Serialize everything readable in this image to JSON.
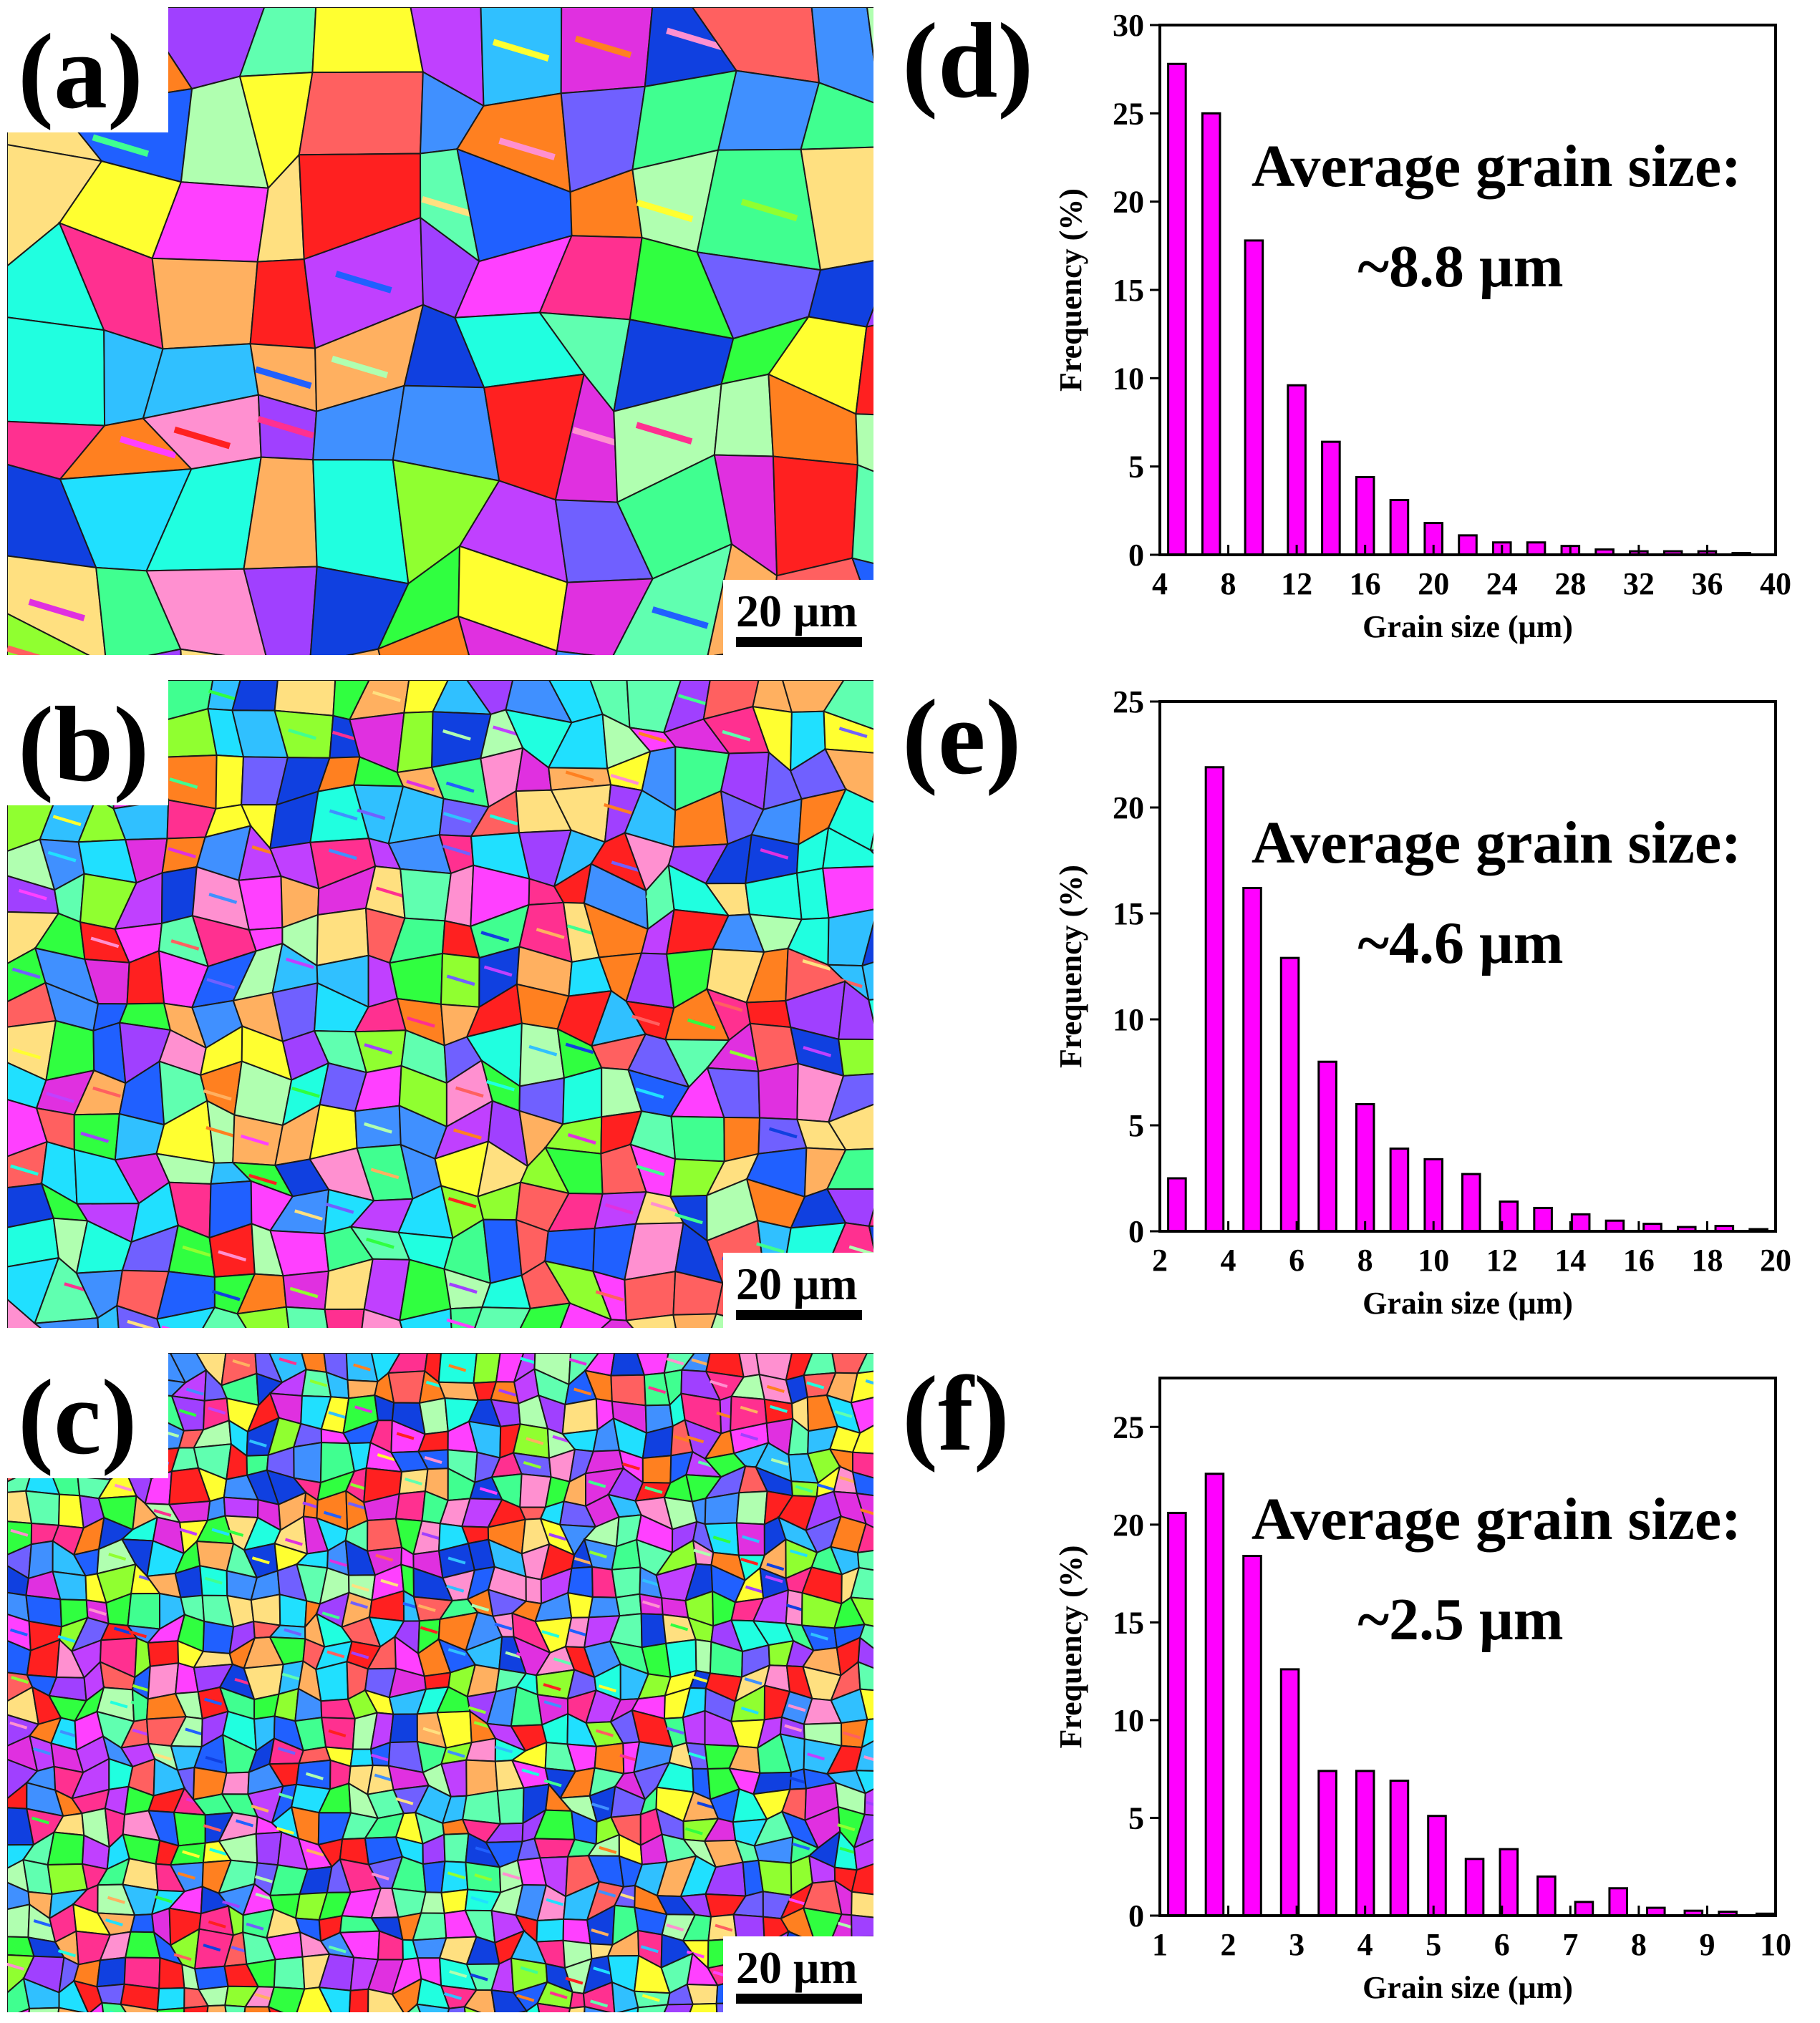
{
  "maps": [
    {
      "label": "(a)",
      "scale": "20 μm",
      "grain": 110,
      "seed": 7
    },
    {
      "label": "(b)",
      "scale": "20 μm",
      "grain": 55,
      "seed": 19
    },
    {
      "label": "(c)",
      "scale": "20 μm",
      "grain": 34,
      "seed": 31
    }
  ],
  "chart_data": [
    {
      "type": "bar",
      "panel": "(d)",
      "xlabel": "Grain size (μm)",
      "ylabel": "Frequency (%)",
      "annotation_line1": "Average grain size:",
      "annotation_line2": "~8.8 μm",
      "xlim": [
        4,
        40
      ],
      "ylim": [
        0,
        30
      ],
      "xticks": [
        4,
        8,
        12,
        16,
        20,
        24,
        28,
        32,
        36,
        40
      ],
      "yticks": [
        0,
        5,
        10,
        15,
        20,
        25,
        30
      ],
      "x": [
        5,
        7,
        9.5,
        12,
        14,
        16,
        18,
        20,
        22,
        24,
        26,
        28,
        30,
        32,
        34,
        36,
        38
      ],
      "values": [
        27.8,
        25,
        17.8,
        9.6,
        6.4,
        4.4,
        3.1,
        1.8,
        1.1,
        0.7,
        0.7,
        0.5,
        0.3,
        0.2,
        0.2,
        0.2,
        0.1
      ],
      "bar_color": "#ff00ff"
    },
    {
      "type": "bar",
      "panel": "(e)",
      "xlabel": "Grain size (μm)",
      "ylabel": "Frequency (%)",
      "annotation_line1": "Average grain size:",
      "annotation_line2": "~4.6 μm",
      "xlim": [
        2,
        20
      ],
      "ylim": [
        0,
        25
      ],
      "xticks": [
        2,
        4,
        6,
        8,
        10,
        12,
        14,
        16,
        18,
        20
      ],
      "yticks": [
        0,
        5,
        10,
        15,
        20,
        25
      ],
      "x": [
        2.5,
        3.6,
        4.7,
        5.8,
        6.9,
        8,
        9,
        10,
        11.1,
        12.2,
        13.2,
        14.3,
        15.3,
        16.4,
        17.4,
        18.5,
        19.5
      ],
      "values": [
        2.5,
        21.9,
        16.2,
        12.9,
        8.0,
        6.0,
        3.9,
        3.4,
        2.7,
        1.4,
        1.1,
        0.8,
        0.5,
        0.35,
        0.2,
        0.25,
        0.1
      ],
      "bar_color": "#ff00ff"
    },
    {
      "type": "bar",
      "panel": "(f)",
      "xlabel": "Grain size (μm)",
      "ylabel": "Frequency (%)",
      "annotation_line1": "Average grain size:",
      "annotation_line2": "~2.5 μm",
      "xlim": [
        1,
        10
      ],
      "ylim": [
        0,
        27.5
      ],
      "xticks": [
        1,
        2,
        3,
        4,
        5,
        6,
        7,
        8,
        9,
        10
      ],
      "yticks": [
        0,
        5,
        10,
        15,
        20,
        25
      ],
      "x": [
        1.25,
        1.8,
        2.35,
        2.9,
        3.45,
        4.0,
        4.5,
        5.05,
        5.6,
        6.1,
        6.65,
        7.2,
        7.7,
        8.25,
        8.8,
        9.3,
        9.85
      ],
      "values": [
        20.6,
        22.6,
        18.4,
        12.6,
        7.4,
        7.4,
        6.9,
        5.1,
        2.9,
        3.4,
        2.0,
        0.7,
        1.4,
        0.4,
        0.25,
        0.2,
        0.1
      ],
      "bar_color": "#ff00ff"
    }
  ]
}
